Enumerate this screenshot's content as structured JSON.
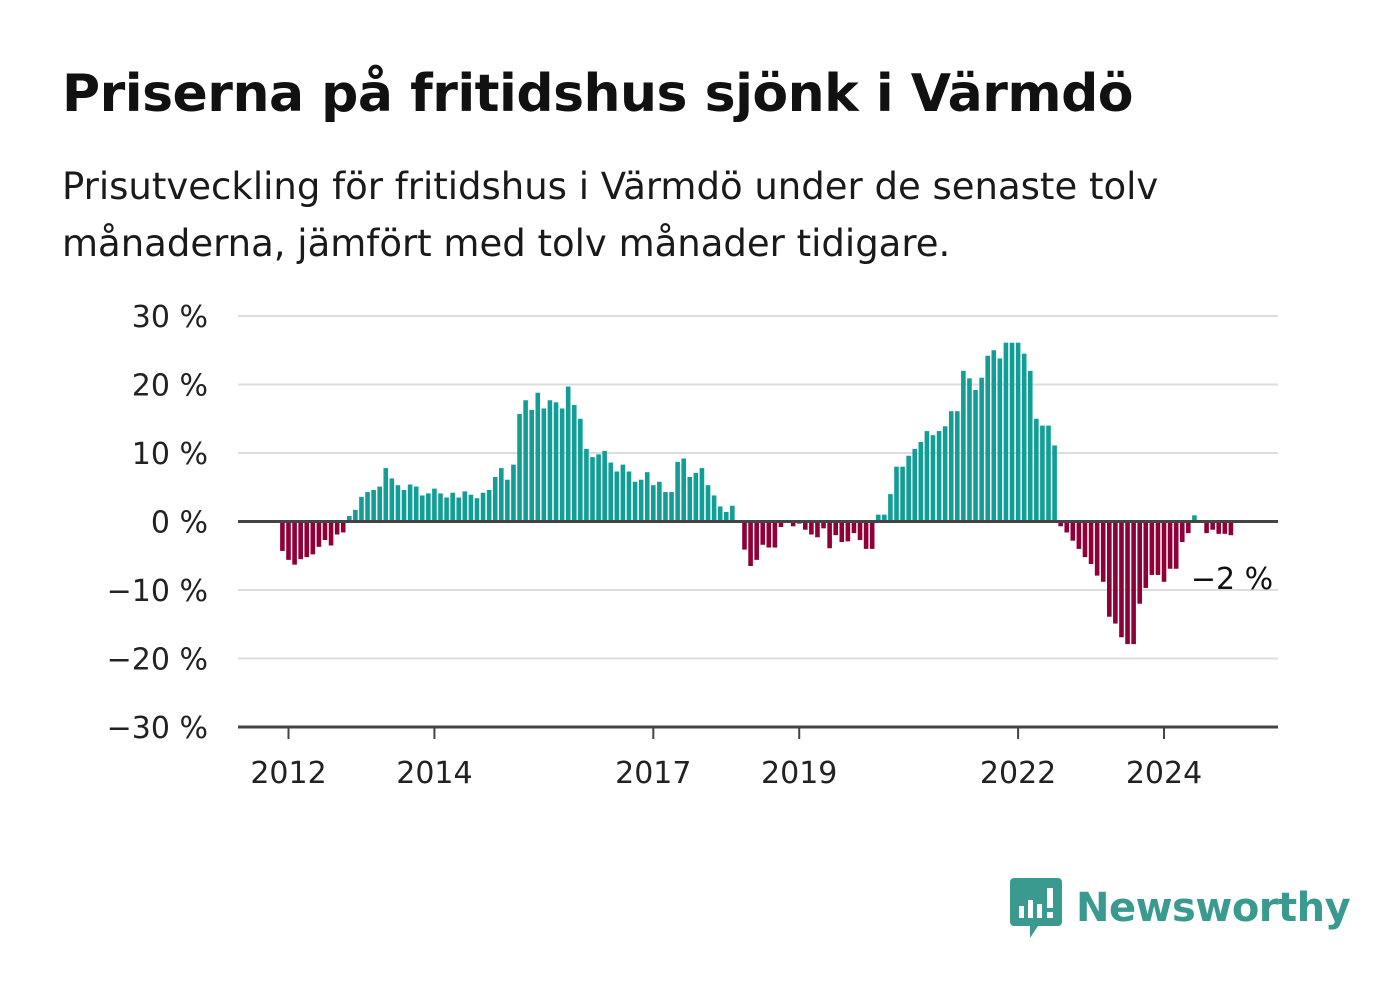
{
  "title": "Priserna på fritidshus sjönk i Värmdö",
  "subtitle": "Prisutveckling för fritidshus i Värmdö under de senaste tolv månaderna, jämfört med tolv månader tidigare.",
  "brand": {
    "name": "Newsworthy",
    "color": "#3a9a8f",
    "icon": "bar-chart-speech-bubble-icon"
  },
  "colors": {
    "positive": "#119e96",
    "negative": "#8f0039",
    "grid": "#dddddd",
    "axis": "#444444"
  },
  "chart_data": {
    "type": "bar",
    "ylim": [
      -30,
      30
    ],
    "y_ticks": [
      30,
      20,
      10,
      0,
      -10,
      -20,
      -30
    ],
    "y_tick_labels": [
      "30 %",
      "20 %",
      "10 %",
      "0 %",
      "−10 %",
      "−20 %",
      "−30 %"
    ],
    "x_ticks": [
      "2012",
      "2014",
      "2017",
      "2019",
      "2022",
      "2024"
    ],
    "grid": true,
    "annotation": {
      "text": "−2 %",
      "value": -2
    },
    "series": [
      {
        "x": [
          "2011-12",
          "2012-01",
          "2012-02",
          "2012-03",
          "2012-04",
          "2012-05",
          "2012-06",
          "2012-07",
          "2012-08",
          "2012-09",
          "2012-10",
          "2012-11",
          "2012-12",
          "2013-01",
          "2013-02",
          "2013-03",
          "2013-04",
          "2013-05",
          "2013-06",
          "2013-07",
          "2013-08",
          "2013-09",
          "2013-10",
          "2013-11",
          "2013-12",
          "2014-01",
          "2014-02",
          "2014-03",
          "2014-04",
          "2014-05",
          "2014-06",
          "2014-07",
          "2014-08",
          "2014-09",
          "2014-10",
          "2014-11",
          "2014-12",
          "2015-01",
          "2015-02",
          "2015-03",
          "2015-04",
          "2015-05",
          "2015-06",
          "2015-07",
          "2015-08",
          "2015-09",
          "2015-10",
          "2015-11",
          "2015-12",
          "2016-01",
          "2016-02",
          "2016-03",
          "2016-04",
          "2016-05",
          "2016-06",
          "2016-07",
          "2016-08",
          "2016-09",
          "2016-10",
          "2016-11",
          "2016-12",
          "2017-01",
          "2017-02",
          "2017-03",
          "2017-04",
          "2017-05",
          "2017-06",
          "2017-07",
          "2017-08",
          "2017-09",
          "2017-10",
          "2017-11",
          "2017-12",
          "2018-01",
          "2018-02",
          "2018-03",
          "2018-04",
          "2018-05",
          "2018-06",
          "2018-07",
          "2018-08",
          "2018-09",
          "2018-10",
          "2018-11",
          "2018-12",
          "2019-01",
          "2019-02",
          "2019-03",
          "2019-04",
          "2019-05",
          "2019-06",
          "2019-07",
          "2019-08",
          "2019-09",
          "2019-10",
          "2019-11",
          "2019-12",
          "2020-01",
          "2020-02",
          "2020-03",
          "2020-04",
          "2020-05",
          "2020-06",
          "2020-07",
          "2020-08",
          "2020-09",
          "2020-10",
          "2020-11",
          "2020-12",
          "2021-01",
          "2021-02",
          "2021-03",
          "2021-04",
          "2021-05",
          "2021-06",
          "2021-07",
          "2021-08",
          "2021-09",
          "2021-10",
          "2021-11",
          "2021-12",
          "2022-01",
          "2022-02",
          "2022-03",
          "2022-04",
          "2022-05",
          "2022-06",
          "2022-07",
          "2022-08",
          "2022-09",
          "2022-10",
          "2022-11",
          "2022-12",
          "2023-01",
          "2023-02",
          "2023-03",
          "2023-04",
          "2023-05",
          "2023-06",
          "2023-07",
          "2023-08",
          "2023-09",
          "2023-10",
          "2023-11",
          "2023-12",
          "2024-01",
          "2024-02",
          "2024-03",
          "2024-04",
          "2024-05",
          "2024-06",
          "2024-07",
          "2024-08",
          "2024-09",
          "2024-10",
          "2024-11",
          "2024-12"
        ],
        "values": [
          -4.3,
          -5.6,
          -6.3,
          -5.5,
          -5.2,
          -4.8,
          -3.7,
          -2.7,
          -3.5,
          -1.9,
          -1.6,
          0.8,
          1.7,
          3.6,
          4.3,
          4.6,
          5.1,
          7.8,
          6.3,
          5.3,
          4.6,
          5.4,
          5.1,
          3.8,
          4.1,
          4.8,
          4.1,
          3.5,
          4.2,
          3.5,
          4.4,
          3.9,
          3.4,
          4.2,
          4.6,
          6.5,
          7.8,
          6.1,
          8.3,
          15.7,
          17.7,
          16.3,
          18.8,
          16.5,
          17.7,
          17.4,
          16.5,
          19.7,
          17.0,
          15.0,
          10.6,
          9.4,
          9.8,
          10.3,
          8.6,
          7.3,
          8.3,
          7.3,
          5.8,
          6.1,
          7.2,
          5.3,
          5.8,
          4.3,
          4.3,
          8.7,
          9.2,
          6.5,
          7.1,
          7.8,
          5.3,
          3.8,
          2.2,
          1.4,
          2.3,
          0.0,
          -4.1,
          -6.5,
          -5.6,
          -3.4,
          -3.8,
          -3.8,
          -0.8,
          0.0,
          -0.7,
          -0.3,
          -1.2,
          -1.9,
          -2.3,
          -1.0,
          -3.9,
          -2.0,
          -3.0,
          -2.9,
          -1.7,
          -2.7,
          -4.0,
          -4.0,
          1.0,
          1.0,
          4.0,
          8.0,
          8.0,
          9.6,
          10.6,
          11.6,
          13.2,
          12.6,
          13.2,
          13.9,
          16.1,
          16.1,
          22.0,
          20.9,
          19.2,
          21.0,
          24.2,
          25.0,
          23.8,
          26.1,
          26.1,
          26.1,
          24.5,
          22.0,
          15.0,
          14.0,
          14.0,
          11.1,
          -0.7,
          -1.6,
          -2.8,
          -4.0,
          -5.2,
          -6.2,
          -7.9,
          -8.8,
          -13.9,
          -14.9,
          -16.9,
          -17.9,
          -17.9,
          -12.0,
          -9.7,
          -7.8,
          -7.8,
          -8.8,
          -6.9,
          -6.9,
          -3.0,
          -1.7,
          0.9,
          0.0,
          -1.7,
          -1.2,
          -1.8,
          -1.8,
          -2.0
        ]
      }
    ]
  }
}
